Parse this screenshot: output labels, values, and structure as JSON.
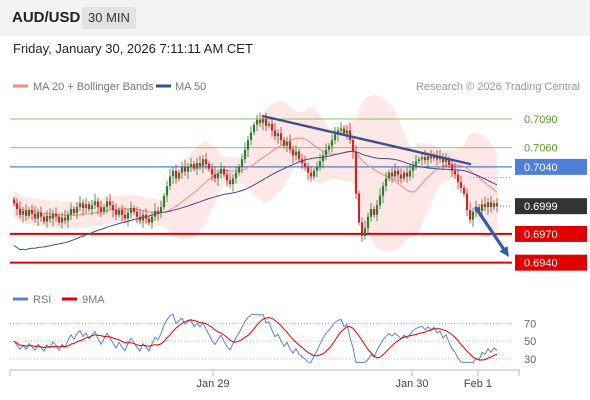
{
  "header": {
    "symbol": "AUD/USD",
    "timeframe": "30 MIN",
    "datetime": "Friday, January 30, 2026 7:11:11 AM CET"
  },
  "legend": {
    "ma20_label": "MA 20 + Bollinger Bands",
    "ma50_label": "MA 50",
    "credit": "Research © 2026 Trading Central"
  },
  "rsi_legend": {
    "rsi_label": "RSI",
    "ma_label": "9MA"
  },
  "colors": {
    "bull": "#2e7d32",
    "bear": "#c62828",
    "ma20": "#ef8a85",
    "ma50": "#3a4f8a",
    "band": "#fde3e3",
    "support": "#e00000",
    "resistance": "#6cb33f",
    "pivot": "#4f7fd9",
    "trend": "#3d4f8f",
    "arrow": "#2b5ea7",
    "rsi": "#5b83d4",
    "rsi_ma": "#e00000",
    "last": "#333333"
  },
  "chart_data": [
    {
      "type": "candlestick",
      "y_axis": {
        "range": [
          0.6924,
          0.7114
        ]
      },
      "x_axis": {
        "ticks": [
          "Jan 29",
          "Jan 30",
          "Feb 1"
        ]
      },
      "levels": [
        {
          "value": 0.709,
          "label": "0.7090",
          "kind": "resistance"
        },
        {
          "value": 0.706,
          "label": "0.7060",
          "kind": "resistance"
        },
        {
          "value": 0.704,
          "label": "0.7040",
          "kind": "pivot"
        },
        {
          "value": 0.6999,
          "label": "0.6999",
          "kind": "last"
        },
        {
          "value": 0.697,
          "label": "0.6970",
          "kind": "support"
        },
        {
          "value": 0.694,
          "label": "0.6940",
          "kind": "support"
        }
      ],
      "trendline": {
        "from": [
          83,
          0.7093
        ],
        "to": [
          152,
          0.7043
        ]
      },
      "forecast_arrow": {
        "from": [
          154,
          0.6997
        ],
        "to": [
          165,
          0.6946
        ]
      },
      "closes": [
        0.7002,
        0.6996,
        0.699,
        0.6994,
        0.6989,
        0.6995,
        0.6991,
        0.6986,
        0.6992,
        0.6988,
        0.6983,
        0.6989,
        0.6986,
        0.6991,
        0.6988,
        0.6982,
        0.6987,
        0.6984,
        0.699,
        0.6996,
        0.6992,
        0.6998,
        0.7002,
        0.6997,
        0.7001,
        0.6996,
        0.7,
        0.7004,
        0.6998,
        0.6993,
        0.6998,
        0.7004,
        0.7,
        0.6995,
        0.699,
        0.6995,
        0.699,
        0.6986,
        0.6992,
        0.6997,
        0.6993,
        0.6988,
        0.6984,
        0.699,
        0.6986,
        0.6982,
        0.6988,
        0.6994,
        0.6992,
        0.6998,
        0.701,
        0.702,
        0.703,
        0.7036,
        0.7028,
        0.7034,
        0.704,
        0.7035,
        0.704,
        0.7043,
        0.7038,
        0.7044,
        0.7041,
        0.7048,
        0.7043,
        0.7038,
        0.7032,
        0.7028,
        0.7033,
        0.7038,
        0.7032,
        0.7026,
        0.7022,
        0.7028,
        0.7034,
        0.704,
        0.7048,
        0.7058,
        0.7068,
        0.7076,
        0.7084,
        0.7089,
        0.7086,
        0.709,
        0.7083,
        0.7085,
        0.7078,
        0.7072,
        0.7075,
        0.7068,
        0.7062,
        0.7066,
        0.7058,
        0.7052,
        0.7056,
        0.7048,
        0.7044,
        0.704,
        0.7034,
        0.703,
        0.7036,
        0.704,
        0.7046,
        0.7052,
        0.7058,
        0.7062,
        0.7068,
        0.7074,
        0.7078,
        0.708,
        0.7075,
        0.7078,
        0.7068,
        0.7056,
        0.7012,
        0.6982,
        0.6968,
        0.6976,
        0.6988,
        0.6996,
        0.699,
        0.7,
        0.701,
        0.702,
        0.7028,
        0.7034,
        0.703,
        0.7036,
        0.7032,
        0.7028,
        0.7034,
        0.703,
        0.7036,
        0.7042,
        0.7046,
        0.7048,
        0.705,
        0.7047,
        0.7051,
        0.7049,
        0.7052,
        0.7048,
        0.705,
        0.7045,
        0.7048,
        0.7042,
        0.7036,
        0.7032,
        0.7024,
        0.7018,
        0.7012,
        0.6995,
        0.6985,
        0.6993,
        0.6998,
        0.6994,
        0.7001,
        0.6998,
        0.7003,
        0.6998,
        0.7002,
        0.6999
      ]
    },
    {
      "type": "line",
      "y_axis": {
        "range": [
          22,
          85
        ],
        "ticks": [
          70,
          50,
          30
        ]
      },
      "series": [
        {
          "name": "RSI"
        },
        {
          "name": "9MA"
        }
      ]
    }
  ]
}
